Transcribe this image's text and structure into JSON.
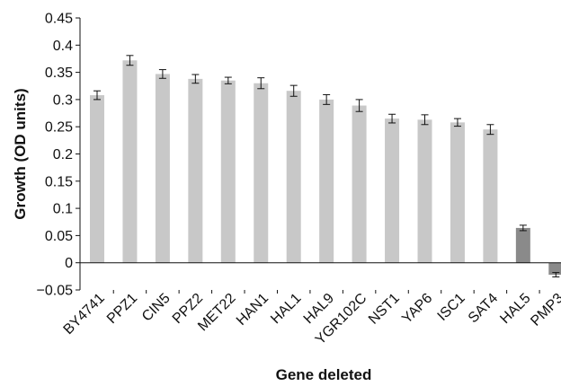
{
  "chart_data": {
    "type": "bar",
    "title": "",
    "xlabel": "Gene deleted",
    "ylabel": "Growth (OD units)",
    "ylim": [
      -0.05,
      0.45
    ],
    "yticks": [
      -0.05,
      0,
      0.05,
      0.1,
      0.15,
      0.2,
      0.25,
      0.3,
      0.35,
      0.4,
      0.45
    ],
    "ytick_labels": [
      "−0.05",
      "0",
      "0.05",
      "0.1",
      "0.15",
      "0.2",
      "0.25",
      "0.3",
      "0.35",
      "0.4",
      "0.45"
    ],
    "grid": false,
    "legend": "none",
    "categories": [
      "BY4741",
      "PPZ1",
      "CIN5",
      "PPZ2",
      "MET22",
      "HAN1",
      "HAL1",
      "HAL9",
      "YGR102C",
      "NST1",
      "YAP6",
      "ISC1",
      "SAT4",
      "HAL5",
      "PMP3"
    ],
    "values": [
      0.308,
      0.372,
      0.347,
      0.338,
      0.335,
      0.33,
      0.316,
      0.3,
      0.289,
      0.265,
      0.263,
      0.258,
      0.245,
      0.064,
      -0.022
    ],
    "errors": [
      0.008,
      0.009,
      0.008,
      0.008,
      0.006,
      0.01,
      0.01,
      0.009,
      0.011,
      0.008,
      0.009,
      0.007,
      0.009,
      0.005,
      0.004
    ],
    "bar_colors": [
      "#c8c8c8",
      "#c8c8c8",
      "#c8c8c8",
      "#c8c8c8",
      "#c8c8c8",
      "#c8c8c8",
      "#c8c8c8",
      "#c8c8c8",
      "#c8c8c8",
      "#c8c8c8",
      "#c8c8c8",
      "#c8c8c8",
      "#c8c8c8",
      "#8a8a8a",
      "#8a8a8a"
    ],
    "axis_color": "#111111"
  }
}
